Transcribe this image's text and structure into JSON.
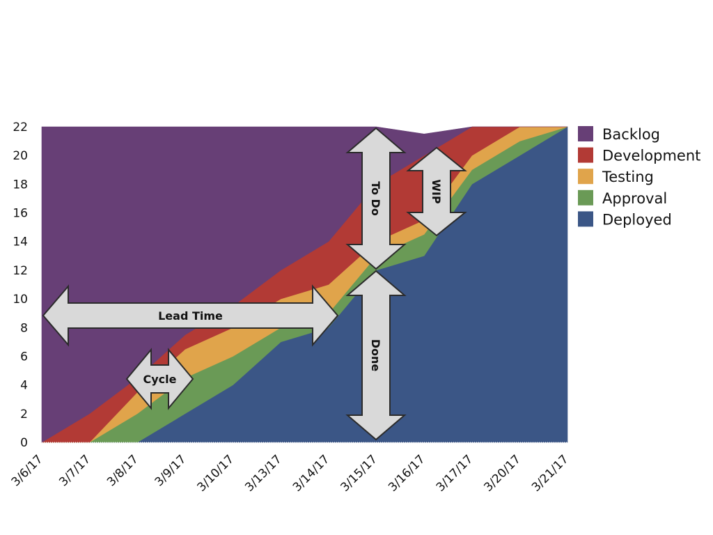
{
  "chart_data": {
    "type": "area",
    "stacked": true,
    "x": [
      "3/6/17",
      "3/7/17",
      "3/8/17",
      "3/9/17",
      "3/10/17",
      "3/13/17",
      "3/14/17",
      "3/15/17",
      "3/16/17",
      "3/17/17",
      "3/20/17",
      "3/21/17"
    ],
    "ylim": [
      0,
      22
    ],
    "yticks": [
      "0",
      "2",
      "4",
      "6",
      "8",
      "10",
      "12",
      "14",
      "16",
      "18",
      "20",
      "22"
    ],
    "grid": false,
    "legend_position": "right",
    "series": [
      {
        "name": "Deployed",
        "color": "#3b5686",
        "values": [
          0,
          0,
          0,
          2,
          4,
          7,
          8,
          12,
          13,
          18,
          20,
          22
        ]
      },
      {
        "name": "Approval",
        "color": "#6a9a56",
        "values": [
          0,
          0,
          2,
          2.5,
          2,
          1,
          1,
          1,
          1.5,
          1,
          1,
          0
        ]
      },
      {
        "name": "Testing",
        "color": "#e0a44b",
        "values": [
          0,
          0,
          1.5,
          2,
          2,
          2,
          2,
          1,
          1,
          1,
          1,
          0
        ]
      },
      {
        "name": "Development",
        "color": "#b23a35",
        "values": [
          0,
          2,
          1,
          1,
          1.5,
          2,
          3,
          4,
          4.5,
          2,
          0,
          0
        ]
      },
      {
        "name": "Backlog",
        "color": "#673f76",
        "values": [
          22,
          20,
          17.5,
          14.5,
          12.5,
          10,
          8,
          4,
          1.5,
          0,
          0,
          0
        ]
      }
    ],
    "legend": [
      "Backlog",
      "Development",
      "Testing",
      "Approval",
      "Deployed"
    ],
    "annotations": [
      {
        "label": "Lead Time",
        "direction": "horizontal",
        "x_from": "3/6/17",
        "x_to": "3/14/17+",
        "y": 8.8
      },
      {
        "label": "Cycle",
        "direction": "horizontal",
        "x_from": "3/8/17-",
        "x_to": "3/9/17-",
        "y": 4.5
      },
      {
        "label": "To Do",
        "direction": "vertical",
        "x": "3/15/17-",
        "y_from": 12,
        "y_to": 22
      },
      {
        "label": "Done",
        "direction": "vertical",
        "x": "3/15/17-",
        "y_from": 0,
        "y_to": 12
      },
      {
        "label": "WIP",
        "direction": "vertical",
        "x": "3/16/17+",
        "y_from": 14.5,
        "y_to": 19.5
      }
    ]
  }
}
